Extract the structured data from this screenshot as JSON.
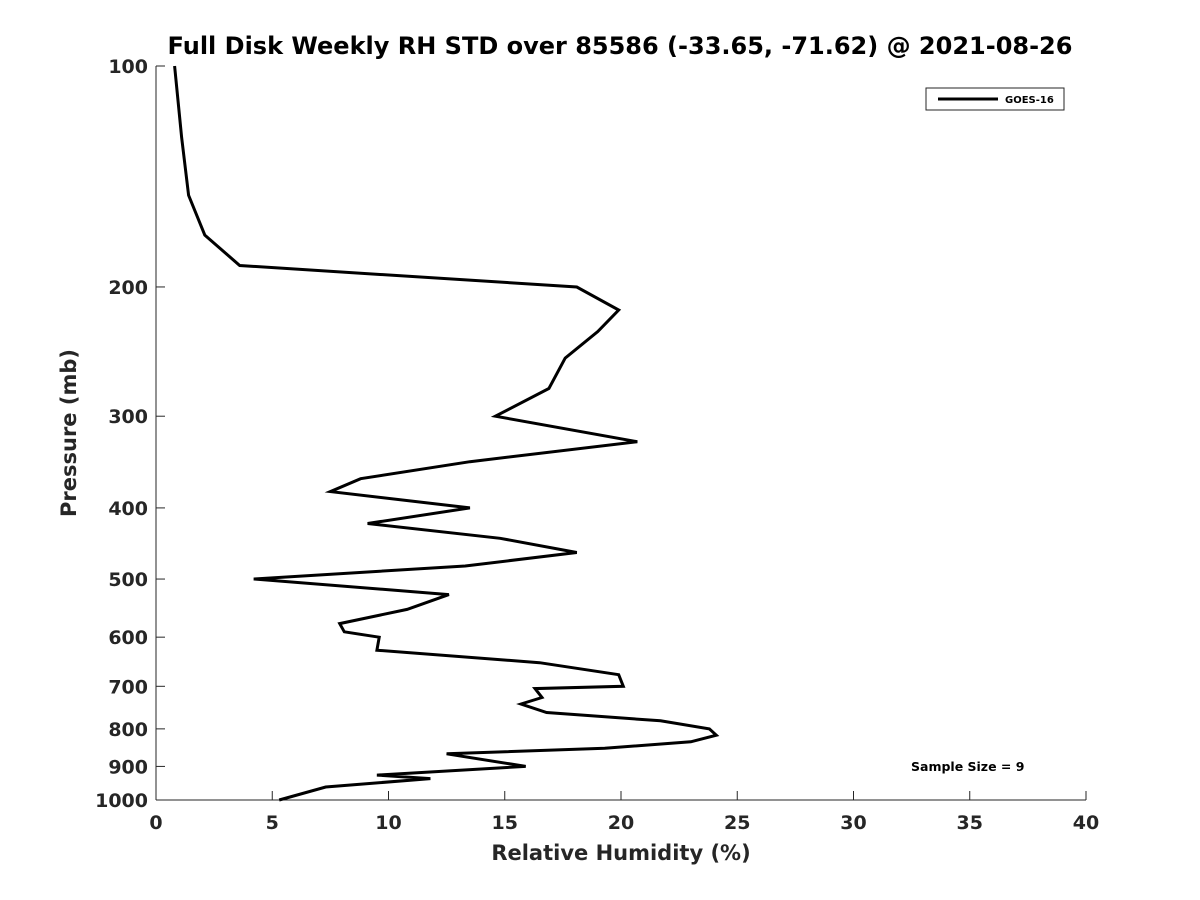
{
  "chart_data": {
    "type": "line",
    "title": "Full Disk Weekly RH STD over 85586 (-33.65, -71.62) @ 2021-08-26",
    "xlabel": "Relative Humidity (%)",
    "ylabel": "Pressure (mb)",
    "xlim": [
      0,
      40
    ],
    "ylim": [
      100,
      1000
    ],
    "yscale": "log",
    "y_reversed": true,
    "xticks": [
      0,
      5,
      10,
      15,
      20,
      25,
      30,
      35,
      40
    ],
    "yticks": [
      100,
      200,
      300,
      400,
      500,
      600,
      700,
      800,
      900,
      1000
    ],
    "grid": false,
    "legend_position": "top-right",
    "annotation": "Sample Size = 9",
    "series": [
      {
        "name": "GOES-16",
        "color": "#000000",
        "points": [
          [
            0.8,
            100
          ],
          [
            1.1,
            125
          ],
          [
            1.4,
            150
          ],
          [
            2.1,
            170
          ],
          [
            3.6,
            187
          ],
          [
            18.1,
            200
          ],
          [
            19.9,
            215
          ],
          [
            19.0,
            230
          ],
          [
            17.6,
            250
          ],
          [
            16.9,
            275
          ],
          [
            14.6,
            300
          ],
          [
            20.7,
            325
          ],
          [
            13.5,
            346
          ],
          [
            8.8,
            365
          ],
          [
            7.5,
            380
          ],
          [
            13.5,
            400
          ],
          [
            9.1,
            420
          ],
          [
            14.8,
            440
          ],
          [
            18.1,
            460
          ],
          [
            13.3,
            480
          ],
          [
            4.2,
            500
          ],
          [
            12.6,
            525
          ],
          [
            10.8,
            550
          ],
          [
            7.9,
            575
          ],
          [
            8.1,
            590
          ],
          [
            9.6,
            600
          ],
          [
            9.5,
            625
          ],
          [
            16.5,
            650
          ],
          [
            19.9,
            675
          ],
          [
            20.1,
            700
          ],
          [
            16.3,
            705
          ],
          [
            16.6,
            725
          ],
          [
            15.7,
            740
          ],
          [
            16.8,
            760
          ],
          [
            21.7,
            780
          ],
          [
            23.8,
            800
          ],
          [
            24.1,
            816
          ],
          [
            23.0,
            833
          ],
          [
            19.3,
            850
          ],
          [
            12.5,
            865
          ],
          [
            15.9,
            900
          ],
          [
            9.5,
            925
          ],
          [
            11.8,
            935
          ],
          [
            7.3,
            960
          ],
          [
            5.3,
            1000
          ]
        ]
      }
    ]
  }
}
